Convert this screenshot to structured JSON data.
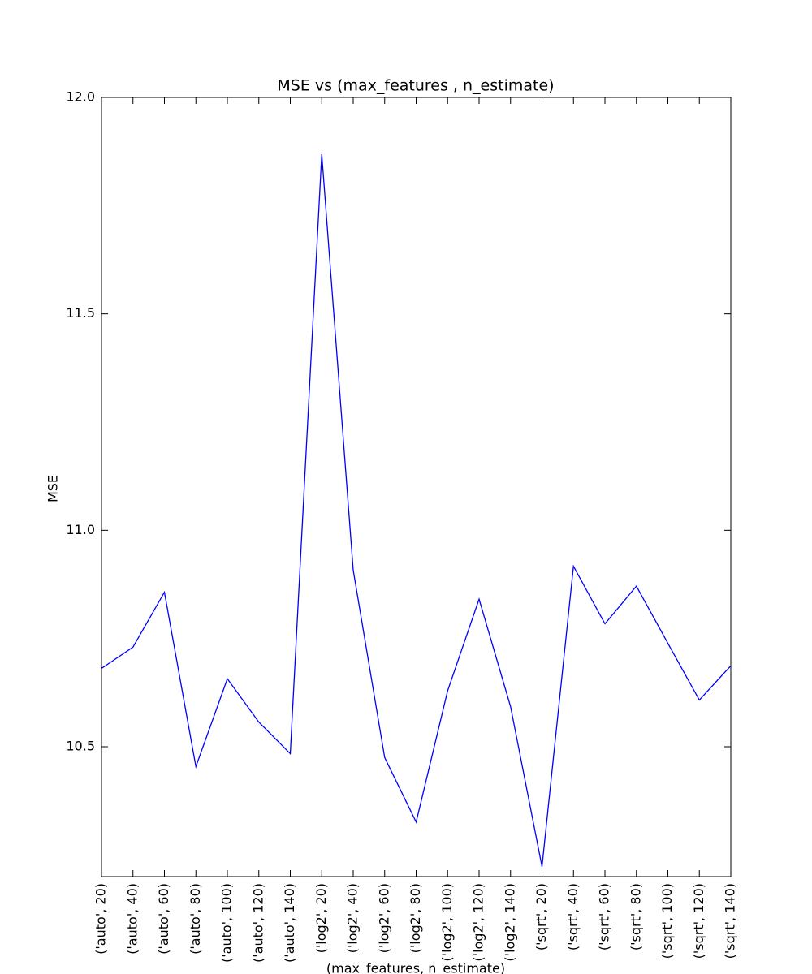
{
  "chart_data": {
    "type": "line",
    "title": "MSE vs (max_features , n_estimate)",
    "xlabel": "(max_features, n_estimate)",
    "ylabel": "MSE",
    "categories": [
      "('auto', 20)",
      "('auto', 40)",
      "('auto', 60)",
      "('auto', 80)",
      "('auto', 100)",
      "('auto', 120)",
      "('auto', 140)",
      "('log2', 20)",
      "('log2', 40)",
      "('log2', 60)",
      "('log2', 80)",
      "('log2', 100)",
      "('log2', 120)",
      "('log2', 140)",
      "('sqrt', 20)",
      "('sqrt', 40)",
      "('sqrt', 60)",
      "('sqrt', 80)",
      "('sqrt', 100)",
      "('sqrt', 120)",
      "('sqrt', 140)"
    ],
    "values": [
      10.681,
      10.73,
      10.857,
      10.454,
      10.657,
      10.557,
      10.484,
      11.869,
      10.908,
      10.475,
      10.326,
      10.629,
      10.841,
      10.593,
      10.223,
      10.917,
      10.784,
      10.871,
      10.739,
      10.608,
      10.687
    ],
    "color": "#0000ff",
    "ylim": [
      10.2,
      12.0
    ],
    "yticks": [
      10.5,
      {
        "value": 11.0,
        "label": "11.0"
      },
      11.5,
      {
        "value": 12.0,
        "label": "12.0"
      }
    ],
    "grid": false
  }
}
